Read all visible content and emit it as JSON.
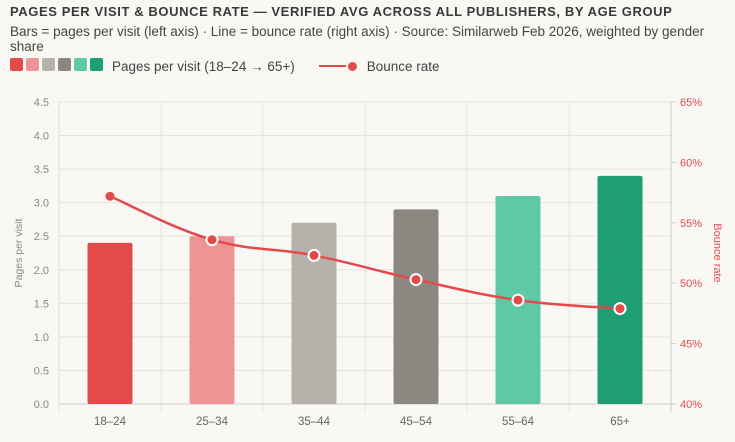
{
  "title": "PAGES PER VISIT & BOUNCE RATE — VERIFIED AVG ACROSS ALL PUBLISHERS, BY AGE GROUP",
  "subtitle": "Bars = pages per visit (left axis) · Line = bounce rate (right axis) · Source: Similarweb Feb 2026, weighted by gender share",
  "legend": {
    "bars_label": "Pages per visit (18–24 → 65+)",
    "line_label": "Bounce rate"
  },
  "chart_data": {
    "type": "bar+line",
    "categories": [
      "18–24",
      "25–34",
      "35–44",
      "45–54",
      "55–64",
      "65+"
    ],
    "series": [
      {
        "name": "Pages per visit",
        "type": "bar",
        "axis": "left",
        "values": [
          2.4,
          2.5,
          2.7,
          2.9,
          3.1,
          3.4
        ],
        "colors": [
          "#e34a4a",
          "#ef9494",
          "#b5b2aa",
          "#8a8880",
          "#5ec9a5",
          "#1e9e74"
        ]
      },
      {
        "name": "Bounce rate",
        "type": "line",
        "axis": "right",
        "values": [
          57.2,
          53.6,
          52.3,
          50.3,
          48.6,
          47.9
        ],
        "color": "#e34a4a"
      }
    ],
    "ylabel": "Pages per visit",
    "y2label": "Bounce rate",
    "ylim": [
      0,
      4.5
    ],
    "y2lim": [
      40,
      65
    ],
    "yticks": [
      "0.0",
      "0.5",
      "1.0",
      "1.5",
      "2.0",
      "2.5",
      "3.0",
      "3.5",
      "4.0",
      "4.5"
    ],
    "y2ticks": [
      "40%",
      "45%",
      "50%",
      "55%",
      "60%",
      "65%"
    ],
    "grid": true,
    "legend_position": "top-left"
  }
}
